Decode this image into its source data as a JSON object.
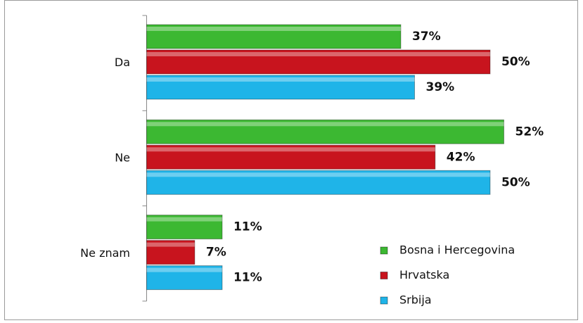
{
  "chart_data": {
    "type": "bar",
    "orientation": "horizontal",
    "categories": [
      "Da",
      "Ne",
      "Ne znam"
    ],
    "series": [
      {
        "name": "Bosna i Hercegovina",
        "color": "#3cb832",
        "values": [
          37,
          52,
          11
        ],
        "value_labels": [
          "37%",
          "52%",
          "11%"
        ]
      },
      {
        "name": "Hrvatska",
        "color": "#c8141e",
        "values": [
          50,
          42,
          7
        ],
        "value_labels": [
          "50%",
          "42%",
          "7%"
        ]
      },
      {
        "name": "Srbija",
        "color": "#1fb4e8",
        "values": [
          39,
          50,
          11
        ],
        "value_labels": [
          "39%",
          "50%",
          "11%"
        ]
      }
    ],
    "legend": "lower right"
  }
}
